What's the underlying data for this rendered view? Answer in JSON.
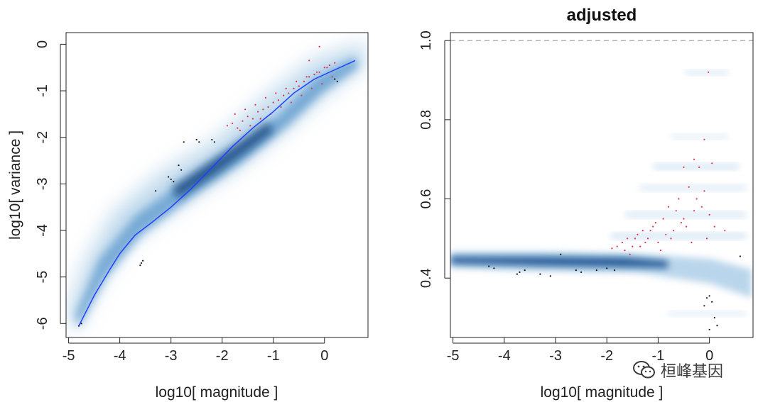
{
  "chart_data": [
    {
      "type": "scatter",
      "title": "",
      "xlabel": "log10[ magnitude ]",
      "ylabel": "log10[ variance ]",
      "xlim": [
        -5.05,
        0.85
      ],
      "ylim": [
        -6.3,
        0.25
      ],
      "xticks": [
        -5,
        -4,
        -3,
        -2,
        -1,
        0
      ],
      "xtick_labels": [
        "-5",
        "-4",
        "-3",
        "-2",
        "-1",
        "0"
      ],
      "yticks": [
        0,
        -1,
        -2,
        -3,
        -4,
        -5,
        -6
      ],
      "ytick_labels": [
        "0",
        "-1",
        "-2",
        "-3",
        "-4",
        "-5",
        "-6"
      ],
      "grid": false,
      "series": [
        {
          "kind": "trend",
          "color": "#1f3fff",
          "x": [
            -4.8,
            -4.5,
            -4.2,
            -4.0,
            -3.7,
            -3.4,
            -3.0,
            -2.6,
            -2.2,
            -1.8,
            -1.4,
            -1.0,
            -0.6,
            -0.2,
            0.2,
            0.6
          ],
          "y": [
            -6.05,
            -5.4,
            -4.85,
            -4.5,
            -4.1,
            -3.85,
            -3.5,
            -3.1,
            -2.65,
            -2.2,
            -1.8,
            -1.45,
            -1.05,
            -0.75,
            -0.55,
            -0.35
          ]
        },
        {
          "kind": "points",
          "color": "#e0304a",
          "x": [
            -1.9,
            -1.8,
            -1.7,
            -1.6,
            -1.5,
            -1.4,
            -1.3,
            -1.2,
            -1.1,
            -1.0,
            -0.9,
            -0.8,
            -0.7,
            -0.6,
            -0.5,
            -0.4,
            -0.3,
            -0.2,
            -0.1,
            0.0,
            0.1,
            0.2,
            -1.75,
            -1.55,
            -1.35,
            -1.15,
            -0.95,
            -0.75,
            -0.55,
            -0.35,
            -0.15,
            0.05,
            -1.65,
            -1.45,
            -1.25,
            -1.05,
            -0.85,
            -0.65,
            -0.45,
            -0.25,
            -0.05,
            0.15,
            -0.3,
            -0.1
          ],
          "y": [
            -1.75,
            -1.7,
            -1.8,
            -1.65,
            -1.55,
            -1.6,
            -1.45,
            -1.4,
            -1.35,
            -1.25,
            -1.2,
            -1.1,
            -1.05,
            -0.95,
            -0.9,
            -0.8,
            -0.7,
            -0.65,
            -0.6,
            -0.5,
            -0.45,
            -0.4,
            -1.5,
            -1.4,
            -1.3,
            -1.15,
            -1.05,
            -0.95,
            -0.8,
            -0.7,
            -0.6,
            -0.5,
            -1.85,
            -1.75,
            -1.6,
            -1.5,
            -1.35,
            -1.25,
            -1.1,
            -0.95,
            -0.85,
            -0.7,
            -0.35,
            -0.05
          ]
        },
        {
          "kind": "points",
          "color": "#111111",
          "x": [
            -4.8,
            -4.75,
            -3.6,
            -3.58,
            -3.55,
            -3.05,
            -3.0,
            -2.95,
            -2.85,
            -2.8,
            -2.75,
            -2.5,
            -2.45,
            -2.2,
            -2.15,
            -3.3,
            0.2,
            0.25
          ],
          "y": [
            -6.05,
            -6.0,
            -4.75,
            -4.7,
            -4.65,
            -2.85,
            -2.9,
            -2.95,
            -2.6,
            -2.7,
            -2.1,
            -2.05,
            -2.1,
            -2.05,
            -2.1,
            -3.15,
            -0.75,
            -0.8
          ]
        }
      ]
    },
    {
      "type": "scatter",
      "title": "adjusted",
      "xlabel": "log10[ magnitude ]",
      "ylabel": "",
      "xlim": [
        -5.05,
        0.85
      ],
      "ylim": [
        0.25,
        1.02
      ],
      "xticks": [
        -5,
        -4,
        -3,
        -2,
        -1,
        0
      ],
      "xtick_labels": [
        "-5",
        "-4",
        "-3",
        "-2",
        "-1",
        "0"
      ],
      "yticks": [
        0.4,
        0.6,
        0.8,
        1.0
      ],
      "ytick_labels": [
        "0.4",
        "0.6",
        "0.8",
        "1.0"
      ],
      "grid": false,
      "reference_line": {
        "y": 1.0,
        "style": "dashed",
        "color": "#9a9a9a"
      },
      "series": [
        {
          "kind": "points",
          "color": "#e0304a",
          "x": [
            -1.9,
            -1.8,
            -1.7,
            -1.6,
            -1.5,
            -1.4,
            -1.3,
            -1.2,
            -1.1,
            -1.0,
            -0.9,
            -0.8,
            -0.7,
            -0.6,
            -0.5,
            -0.4,
            -0.3,
            -0.2,
            -0.1,
            0.0,
            0.1,
            0.3,
            -1.65,
            -1.45,
            -1.25,
            -1.05,
            -0.85,
            -0.65,
            -0.45,
            -0.25,
            -0.05,
            -1.55,
            -1.35,
            -1.15,
            -0.95,
            -0.75,
            -0.55,
            -0.35,
            -0.15,
            -0.5,
            -0.3,
            -0.1,
            -0.02,
            0.05
          ],
          "y": [
            0.475,
            0.48,
            0.49,
            0.5,
            0.48,
            0.51,
            0.52,
            0.5,
            0.53,
            0.49,
            0.55,
            0.58,
            0.52,
            0.6,
            0.55,
            0.63,
            0.57,
            0.68,
            0.62,
            0.56,
            0.53,
            0.52,
            0.47,
            0.5,
            0.49,
            0.54,
            0.51,
            0.57,
            0.53,
            0.6,
            0.5,
            0.46,
            0.48,
            0.52,
            0.47,
            0.5,
            0.54,
            0.49,
            0.58,
            0.68,
            0.7,
            0.75,
            0.92,
            0.69
          ]
        },
        {
          "kind": "points",
          "color": "#111111",
          "x": [
            -4.3,
            -4.2,
            -3.75,
            -3.7,
            -3.6,
            -3.3,
            -3.1,
            -2.9,
            -2.6,
            -2.5,
            -2.2,
            -2.0,
            -1.85,
            -0.05,
            0.0,
            0.05,
            -0.1,
            0.1,
            0.15,
            0.0,
            0.6
          ],
          "y": [
            0.43,
            0.425,
            0.41,
            0.415,
            0.42,
            0.41,
            0.405,
            0.46,
            0.42,
            0.415,
            0.42,
            0.425,
            0.42,
            0.35,
            0.355,
            0.34,
            0.33,
            0.3,
            0.28,
            0.27,
            0.455
          ]
        }
      ]
    }
  ],
  "watermark": {
    "text": "桓峰基因"
  },
  "colors": {
    "density": "#0a3d78",
    "highlight": "#e0304a",
    "trend": "#1f3fff"
  }
}
